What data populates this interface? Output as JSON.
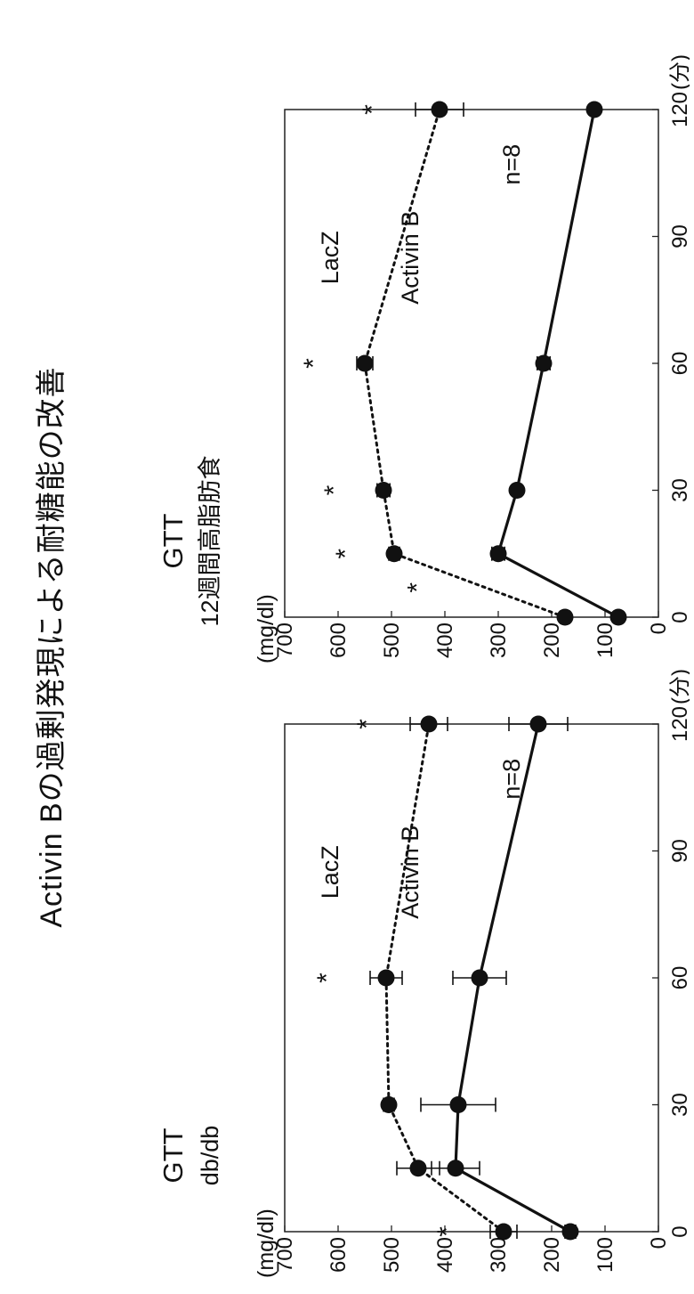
{
  "title": "Activin Bの過剰発現による耐糖能の改善",
  "chart_data": [
    {
      "type": "line",
      "title": "GTT",
      "subtitle": "db/db",
      "ylabel": "(mg/dl)",
      "xlabel": "",
      "x_unit": "(分)",
      "xlim": [
        0,
        120
      ],
      "ylim": [
        0,
        700
      ],
      "x_ticks": [
        "0",
        "30",
        "60",
        "90",
        "120"
      ],
      "y_ticks": [
        "0",
        "100",
        "200",
        "300",
        "400",
        "500",
        "600",
        "700"
      ],
      "x": [
        0,
        15,
        30,
        60,
        120
      ],
      "sample_size": "n=8",
      "series": [
        {
          "name": "LacZ",
          "line_style": "dotted",
          "values": [
            290,
            450,
            505,
            510,
            430
          ],
          "errors": [
            25,
            40,
            10,
            30,
            35
          ]
        },
        {
          "name": "Activin B",
          "line_style": "solid",
          "values": [
            165,
            380,
            375,
            335,
            225
          ],
          "errors": [
            10,
            45,
            70,
            50,
            55
          ]
        }
      ],
      "significance": [
        {
          "x": 0,
          "label": "*"
        },
        {
          "x": 60,
          "label": "*"
        },
        {
          "x": 120,
          "label": "*"
        }
      ]
    },
    {
      "type": "line",
      "title": "GTT",
      "subtitle": "12週間高脂肪食",
      "ylabel": "(mg/dl)",
      "xlabel": "",
      "x_unit": "(分)",
      "xlim": [
        0,
        120
      ],
      "ylim": [
        0,
        700
      ],
      "x_ticks": [
        "0",
        "30",
        "60",
        "90",
        "120"
      ],
      "y_ticks": [
        "0",
        "100",
        "200",
        "300",
        "400",
        "500",
        "600",
        "700"
      ],
      "x": [
        0,
        15,
        30,
        60,
        120
      ],
      "sample_size": "n=8",
      "series": [
        {
          "name": "LacZ",
          "line_style": "dotted",
          "values": [
            175,
            495,
            515,
            550,
            410
          ],
          "errors": [
            8,
            10,
            12,
            15,
            45
          ]
        },
        {
          "name": "Activin B",
          "line_style": "solid",
          "values": [
            75,
            300,
            265,
            215,
            120
          ],
          "errors": [
            5,
            12,
            8,
            12,
            5
          ]
        }
      ],
      "significance": [
        {
          "x": 7,
          "label": "*"
        },
        {
          "x": 15,
          "label": "*"
        },
        {
          "x": 30,
          "label": "*"
        },
        {
          "x": 60,
          "label": "*"
        },
        {
          "x": 120,
          "label": "*"
        }
      ]
    }
  ]
}
